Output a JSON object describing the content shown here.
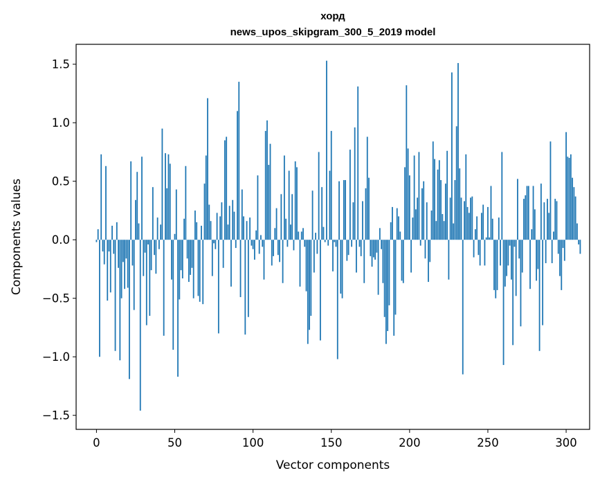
{
  "chart_data": {
    "type": "bar",
    "title_line1": "хорд",
    "title_line2": "news_upos_skipgram_300_5_2019 model",
    "xlabel": "Vector components",
    "ylabel": "Components values",
    "xlim": [
      -13,
      315
    ],
    "ylim": [
      -1.62,
      1.67
    ],
    "xticks": [
      0,
      50,
      100,
      150,
      200,
      250,
      300
    ],
    "yticks": [
      -1.5,
      -1.0,
      -0.5,
      0.0,
      0.5,
      1.0,
      1.5
    ],
    "ytick_labels": [
      "−1.5",
      "−1.0",
      "−0.5",
      "0.0",
      "0.5",
      "1.0",
      "1.5"
    ],
    "bar_color": "#1f77b4",
    "values": [
      -0.02,
      0.09,
      -1.0,
      0.73,
      -0.1,
      -0.21,
      0.63,
      -0.52,
      -0.1,
      -0.45,
      0.12,
      -0.12,
      -0.95,
      0.15,
      -0.24,
      -1.03,
      -0.5,
      -0.19,
      -0.42,
      -0.16,
      -0.41,
      -1.19,
      0.67,
      -0.22,
      -0.6,
      0.34,
      0.58,
      0.14,
      -1.46,
      0.71,
      -0.31,
      -0.11,
      -0.73,
      -0.04,
      -0.65,
      -0.26,
      0.45,
      -0.13,
      -0.29,
      0.19,
      -0.08,
      0.13,
      0.95,
      -0.82,
      0.74,
      0.44,
      0.73,
      0.65,
      -0.34,
      -0.94,
      0.05,
      0.43,
      -1.17,
      -0.51,
      -0.26,
      -0.33,
      0.18,
      0.63,
      -0.16,
      -0.36,
      -0.3,
      -0.24,
      -0.5,
      0.25,
      0.15,
      -0.48,
      -0.53,
      0.12,
      -0.55,
      0.48,
      0.72,
      1.21,
      0.3,
      0.16,
      -0.31,
      -0.03,
      -0.08,
      0.23,
      -0.8,
      0.2,
      0.32,
      -0.24,
      0.85,
      0.88,
      0.13,
      0.29,
      -0.4,
      0.34,
      0.24,
      -0.07,
      1.1,
      1.35,
      -0.49,
      0.43,
      0.2,
      -0.81,
      0.16,
      -0.66,
      0.19,
      -0.05,
      -0.08,
      -0.17,
      0.08,
      0.55,
      -0.12,
      0.04,
      -0.06,
      -0.34,
      0.93,
      1.02,
      0.64,
      0.82,
      -0.22,
      -0.14,
      0.1,
      0.27,
      -0.13,
      -0.19,
      0.39,
      -0.37,
      0.72,
      0.18,
      -0.06,
      0.59,
      0.13,
      0.39,
      -0.09,
      0.67,
      0.62,
      0.07,
      -0.4,
      0.07,
      0.1,
      -0.06,
      -0.44,
      -0.89,
      -0.77,
      -0.65,
      0.42,
      -0.28,
      0.06,
      -0.12,
      0.75,
      -0.86,
      0.45,
      0.11,
      -0.02,
      1.53,
      -0.05,
      0.59,
      0.93,
      -0.27,
      -0.02,
      -0.06,
      -1.02,
      0.5,
      -0.46,
      -0.5,
      0.51,
      0.51,
      -0.18,
      -0.13,
      0.77,
      -0.06,
      0.32,
      0.96,
      -0.28,
      1.31,
      -0.06,
      -0.14,
      0.33,
      -0.37,
      0.44,
      0.88,
      0.53,
      -0.14,
      -0.23,
      -0.15,
      -0.17,
      -0.11,
      -0.47,
      0.1,
      -0.08,
      -0.37,
      -0.66,
      -0.89,
      -0.78,
      -0.56,
      0.15,
      0.28,
      -0.82,
      -0.64,
      0.27,
      0.2,
      0.07,
      -0.35,
      -0.37,
      0.62,
      1.32,
      0.78,
      0.55,
      -0.28,
      0.19,
      0.72,
      0.26,
      0.36,
      0.75,
      -0.05,
      0.44,
      0.5,
      -0.16,
      0.32,
      -0.36,
      -0.19,
      0.25,
      0.84,
      0.69,
      0.16,
      0.6,
      0.68,
      0.51,
      0.22,
      0.16,
      0.48,
      0.76,
      -0.34,
      0.36,
      1.43,
      0.14,
      0.51,
      0.97,
      1.51,
      0.61,
      0.36,
      -1.15,
      0.33,
      0.73,
      0.28,
      0.23,
      0.36,
      0.37,
      -0.15,
      0.09,
      0.2,
      -0.13,
      -0.22,
      0.23,
      0.3,
      -0.22,
      0.02,
      0.28,
      0.02,
      0.46,
      0.18,
      -0.43,
      -0.5,
      -0.43,
      0.19,
      -0.22,
      0.75,
      -1.07,
      -0.4,
      -0.31,
      -0.22,
      -0.05,
      -0.34,
      -0.9,
      -0.06,
      -0.48,
      0.52,
      -0.16,
      -0.74,
      -0.28,
      0.35,
      0.38,
      0.46,
      0.46,
      -0.42,
      0.09,
      0.46,
      0.26,
      -0.35,
      -0.25,
      -0.95,
      0.48,
      -0.73,
      0.32,
      -0.2,
      0.35,
      0.23,
      0.84,
      -0.2,
      0.07,
      0.35,
      0.33,
      -0.12,
      -0.31,
      -0.43,
      -0.07,
      -0.18,
      0.92,
      0.71,
      0.7,
      0.73,
      0.53,
      0.45,
      0.37,
      0.14,
      -0.04,
      -0.12
    ]
  }
}
